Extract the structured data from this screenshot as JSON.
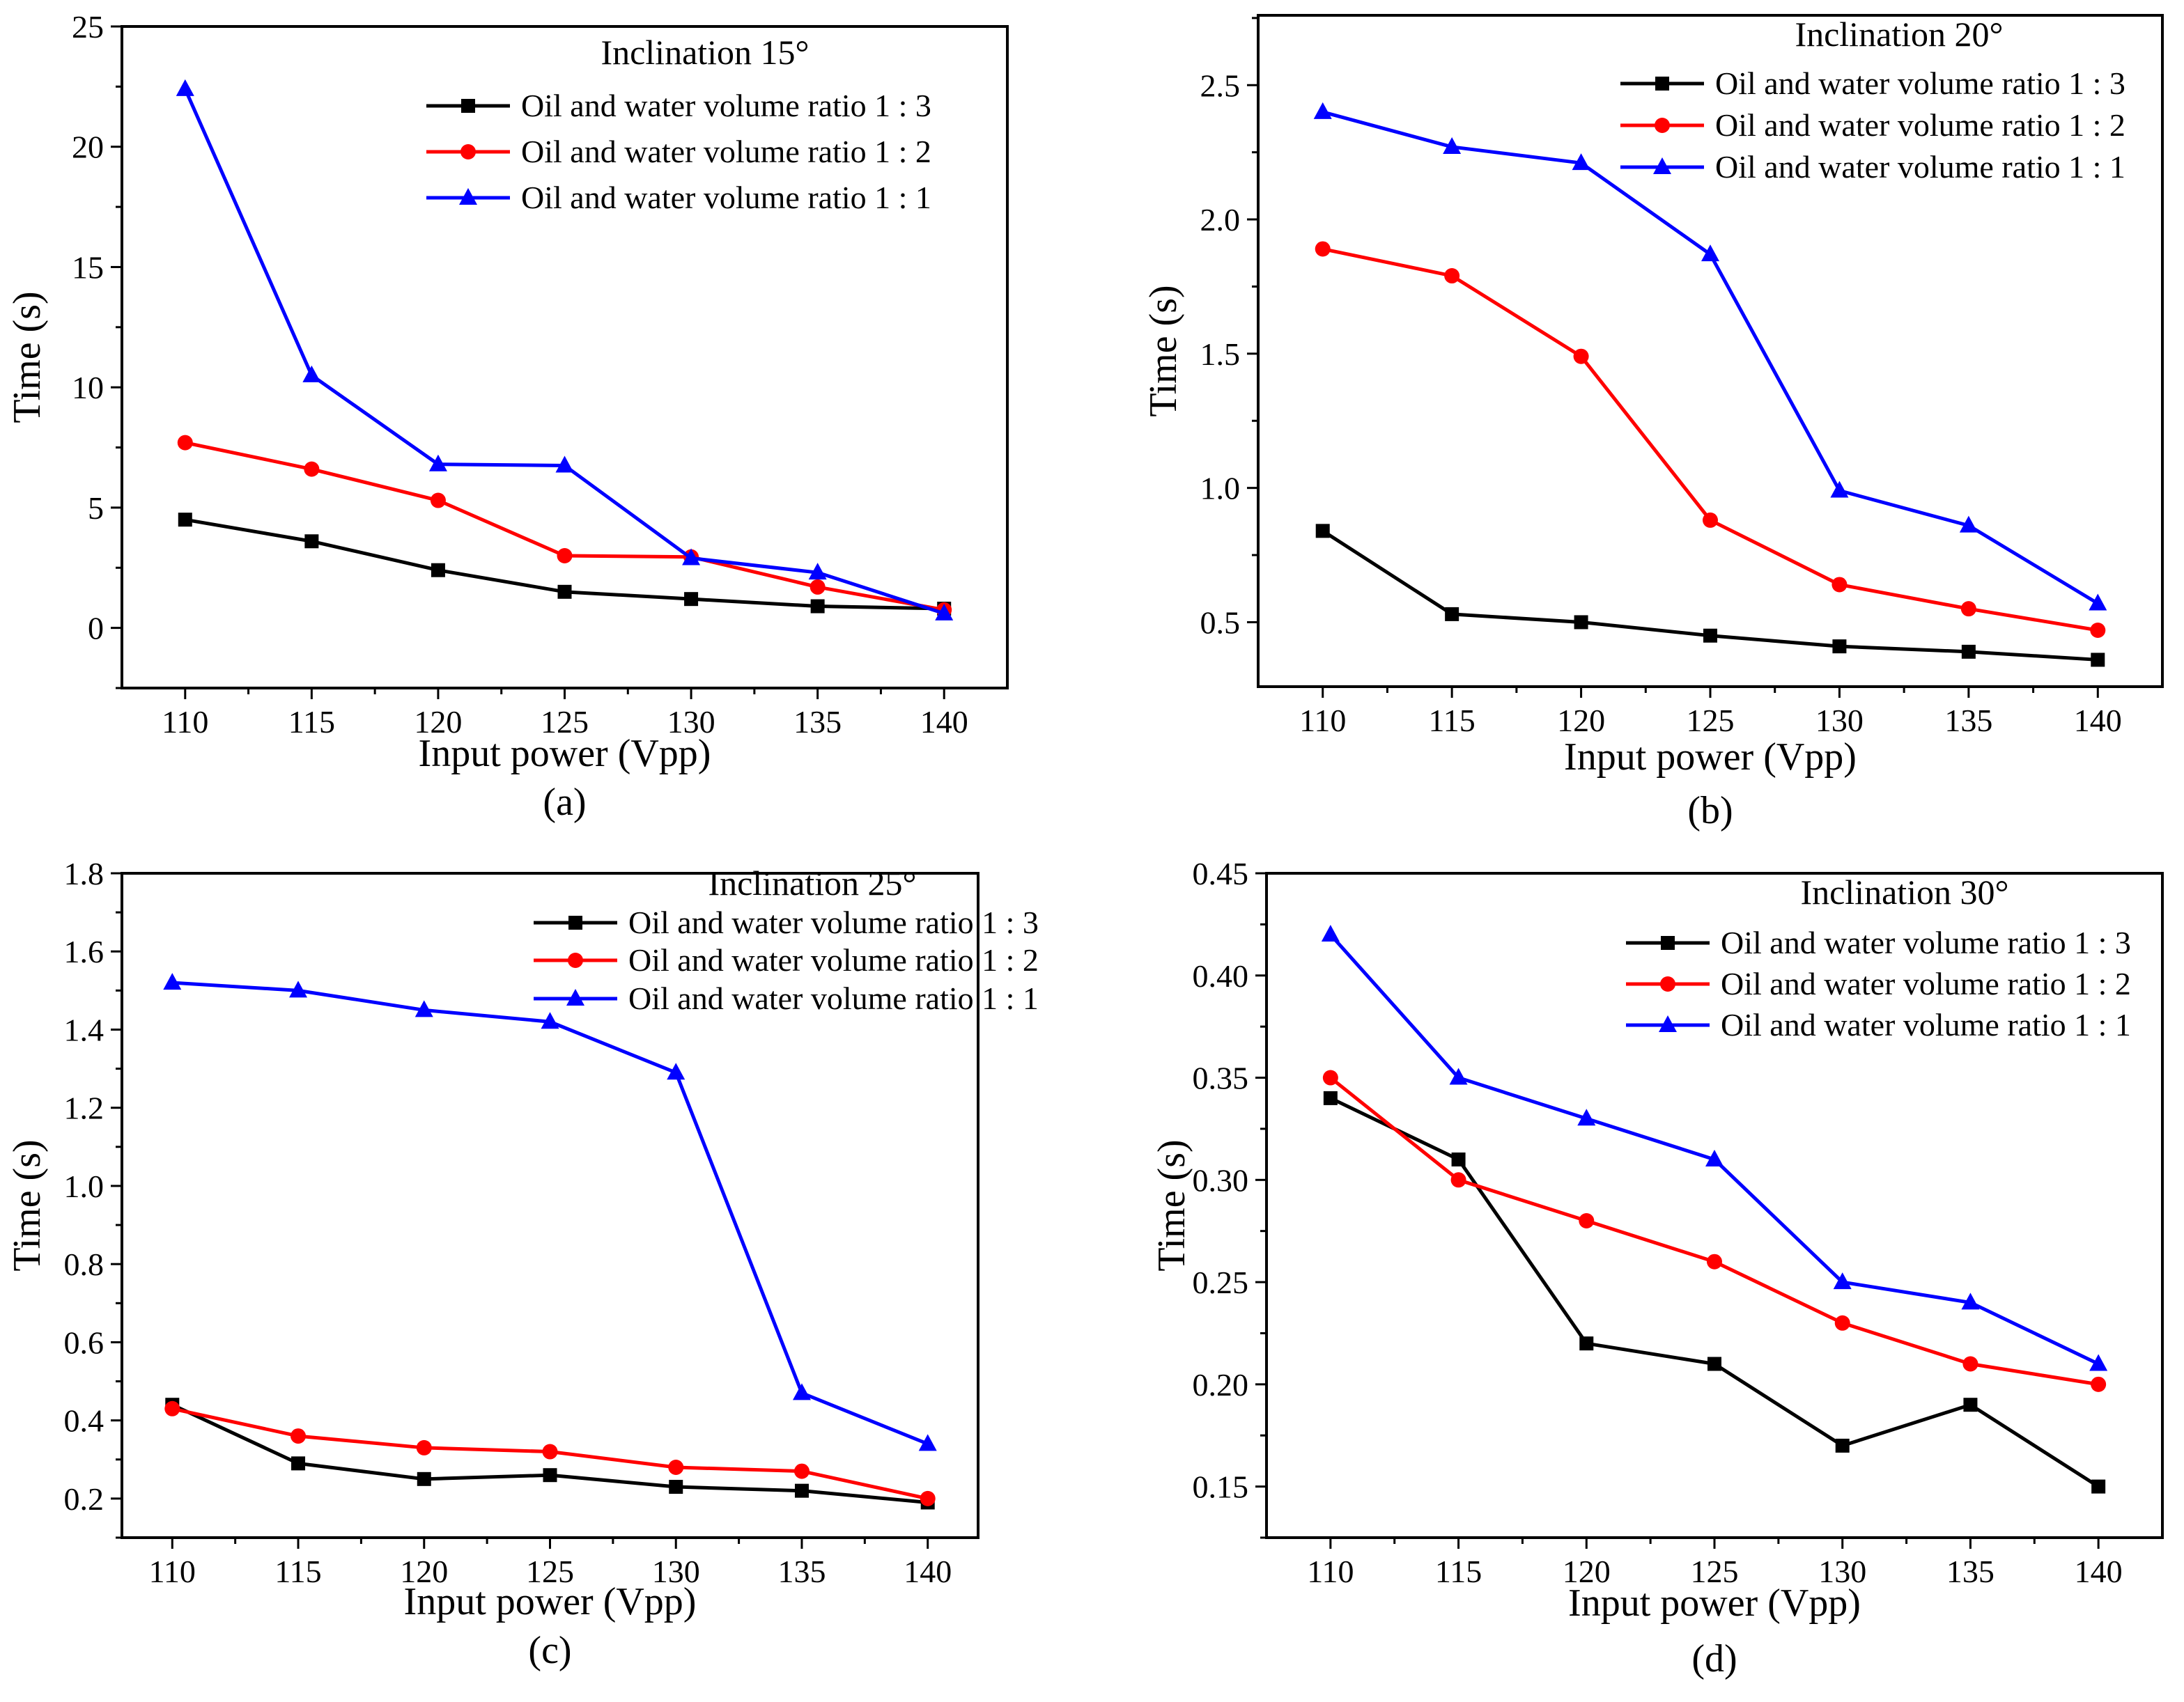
{
  "chart_data": [
    {
      "type": "line",
      "caption": "(a)",
      "legend_title": "Inclination 15°",
      "xlabel": "Input power (Vpp)",
      "ylabel": "Time (s)",
      "x": [
        110,
        115,
        120,
        125,
        130,
        135,
        140
      ],
      "xlim": [
        107.5,
        142.5
      ],
      "ylim": [
        -2.5,
        25
      ],
      "yticks": [
        0,
        5,
        10,
        15,
        20,
        25
      ],
      "ytick_labels": [
        "0",
        "5",
        "10",
        "15",
        "20",
        "25"
      ],
      "legend_position": "top-right",
      "series": [
        {
          "name": "Oil and water volume ratio 1 : 3",
          "color": "#000000",
          "marker": "square",
          "values": [
            4.5,
            3.6,
            2.4,
            1.5,
            1.2,
            0.9,
            0.8
          ]
        },
        {
          "name": "Oil and water volume ratio 1 : 2",
          "color": "#ff0000",
          "marker": "circle",
          "values": [
            7.7,
            6.6,
            5.3,
            3.0,
            2.95,
            1.7,
            0.75
          ]
        },
        {
          "name": "Oil and water volume ratio 1 : 1",
          "color": "#0000ff",
          "marker": "triangle",
          "values": [
            22.4,
            10.5,
            6.8,
            6.75,
            2.9,
            2.3,
            0.6
          ]
        }
      ]
    },
    {
      "type": "line",
      "caption": "(b)",
      "legend_title": "Inclination 20°",
      "xlabel": "Input power (Vpp)",
      "ylabel": "Time (s)",
      "x": [
        110,
        115,
        120,
        125,
        130,
        135,
        140
      ],
      "xlim": [
        107.5,
        142.5
      ],
      "ylim": [
        0.26,
        2.76
      ],
      "yticks": [
        0.5,
        1.0,
        1.5,
        2.0,
        2.5
      ],
      "ytick_labels": [
        "0.5",
        "1.0",
        "1.5",
        "2.0",
        "2.5"
      ],
      "legend_position": "top-right",
      "series": [
        {
          "name": "Oil and water volume ratio 1 : 3",
          "color": "#000000",
          "marker": "square",
          "values": [
            0.84,
            0.53,
            0.5,
            0.45,
            0.41,
            0.39,
            0.36
          ]
        },
        {
          "name": "Oil and water volume ratio 1 : 2",
          "color": "#ff0000",
          "marker": "circle",
          "values": [
            1.89,
            1.79,
            1.49,
            0.88,
            0.64,
            0.55,
            0.47
          ]
        },
        {
          "name": "Oil and water volume ratio 1 : 1",
          "color": "#0000ff",
          "marker": "triangle",
          "values": [
            2.4,
            2.27,
            2.21,
            1.87,
            0.99,
            0.86,
            0.57
          ]
        }
      ]
    },
    {
      "type": "line",
      "caption": "(c)",
      "legend_title": "Inclination 25°",
      "xlabel": "Input power (Vpp)",
      "ylabel": "Time (s)",
      "x": [
        110,
        115,
        120,
        125,
        130,
        135,
        140
      ],
      "xlim": [
        108,
        142
      ],
      "ylim": [
        0.1,
        1.8
      ],
      "yticks": [
        0.2,
        0.4,
        0.6,
        0.8,
        1.0,
        1.2,
        1.4,
        1.6,
        1.8
      ],
      "ytick_labels": [
        "0.2",
        "0.4",
        "0.6",
        "0.8",
        "1.0",
        "1.2",
        "1.4",
        "1.6",
        "1.8"
      ],
      "legend_position": "top-right",
      "series": [
        {
          "name": "Oil and water volume ratio 1 : 3",
          "color": "#000000",
          "marker": "square",
          "values": [
            0.44,
            0.29,
            0.25,
            0.26,
            0.23,
            0.22,
            0.19
          ]
        },
        {
          "name": "Oil and water volume ratio 1 : 2",
          "color": "#ff0000",
          "marker": "circle",
          "values": [
            0.43,
            0.36,
            0.33,
            0.32,
            0.28,
            0.27,
            0.2
          ]
        },
        {
          "name": "Oil and water volume ratio 1 : 1",
          "color": "#0000ff",
          "marker": "triangle",
          "values": [
            1.52,
            1.5,
            1.45,
            1.42,
            1.29,
            0.47,
            0.34
          ]
        }
      ]
    },
    {
      "type": "line",
      "caption": "(d)",
      "legend_title": "Inclination 30°",
      "xlabel": "Input power (Vpp)",
      "ylabel": "Time (s)",
      "x": [
        110,
        115,
        120,
        125,
        130,
        135,
        140
      ],
      "xlim": [
        107.5,
        142.5
      ],
      "ylim": [
        0.125,
        0.45
      ],
      "yticks": [
        0.15,
        0.2,
        0.25,
        0.3,
        0.35,
        0.4,
        0.45
      ],
      "ytick_labels": [
        "0.15",
        "0.20",
        "0.25",
        "0.30",
        "0.35",
        "0.40",
        "0.45"
      ],
      "legend_position": "top-right",
      "series": [
        {
          "name": "Oil and water volume ratio 1 : 3",
          "color": "#000000",
          "marker": "square",
          "values": [
            0.34,
            0.31,
            0.22,
            0.21,
            0.17,
            0.19,
            0.15
          ]
        },
        {
          "name": "Oil and water volume ratio 1 : 2",
          "color": "#ff0000",
          "marker": "circle",
          "values": [
            0.35,
            0.3,
            0.28,
            0.26,
            0.23,
            0.21,
            0.2
          ]
        },
        {
          "name": "Oil and water volume ratio 1 : 1",
          "color": "#0000ff",
          "marker": "triangle",
          "values": [
            0.42,
            0.35,
            0.33,
            0.31,
            0.25,
            0.24,
            0.21
          ]
        }
      ]
    }
  ]
}
